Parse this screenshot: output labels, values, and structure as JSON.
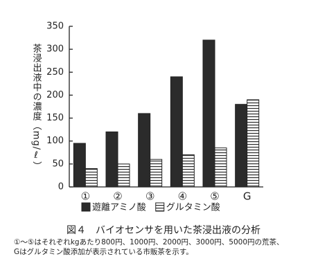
{
  "chart_data": {
    "type": "bar",
    "ylabel": "茶浸出液中の濃度（mg/ℓ）",
    "categories": [
      "①",
      "②",
      "③",
      "④",
      "⑤",
      "G"
    ],
    "series": [
      {
        "name": "遊離アミノ酸",
        "color": "#2b2b2b",
        "values": [
          95,
          120,
          160,
          240,
          320,
          180
        ]
      },
      {
        "name": "グルタミン酸",
        "color": "#2b2b2b",
        "hatch": "horizontal",
        "values": [
          40,
          50,
          60,
          70,
          85,
          190
        ]
      }
    ],
    "ylim": [
      0,
      350
    ],
    "yticks": [
      0,
      50,
      100,
      150,
      200,
      250,
      300,
      350
    ],
    "grid": false,
    "caption": "図４　バイオセンサを用いた茶浸出液の分析",
    "notes": [
      "①～⑤はそれぞれkgあたり800円、1000円、2000円、3000円、5000円の荒茶、",
      "Gはグルタミン酸添加が表示されている市販茶を示す。"
    ]
  }
}
